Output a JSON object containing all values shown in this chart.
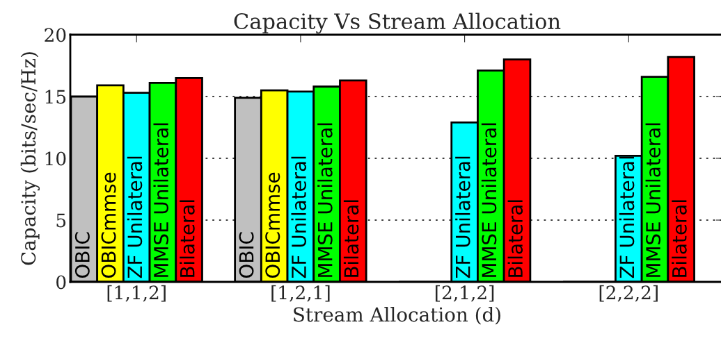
{
  "chart_data": {
    "type": "bar",
    "title": "Capacity Vs Stream Allocation",
    "xlabel": "Stream Allocation (d)",
    "ylabel": "Capacity (bits/sec/Hz)",
    "categories": [
      "[1,1,2]",
      "[1,2,1]",
      "[2,1,2]",
      "[2,2,2]"
    ],
    "series": [
      {
        "name": "OBIC",
        "color": "#c0c0c0",
        "values": [
          15.0,
          14.9,
          0,
          0
        ]
      },
      {
        "name": "OBICmmse",
        "color": "#ffff00",
        "values": [
          15.9,
          15.5,
          0,
          0
        ]
      },
      {
        "name": "ZF Unilateral",
        "color": "#00ffff",
        "values": [
          15.3,
          15.4,
          12.9,
          10.2
        ]
      },
      {
        "name": "MMSE Unilateral",
        "color": "#00ff00",
        "values": [
          16.1,
          15.8,
          17.1,
          16.6
        ]
      },
      {
        "name": "Bilateral",
        "color": "#ff0000",
        "values": [
          16.5,
          16.3,
          18.0,
          18.2
        ]
      }
    ],
    "ylim": [
      0,
      20
    ],
    "yticks": [
      0,
      5,
      10,
      15,
      20
    ],
    "grid": "y",
    "legend": false
  }
}
